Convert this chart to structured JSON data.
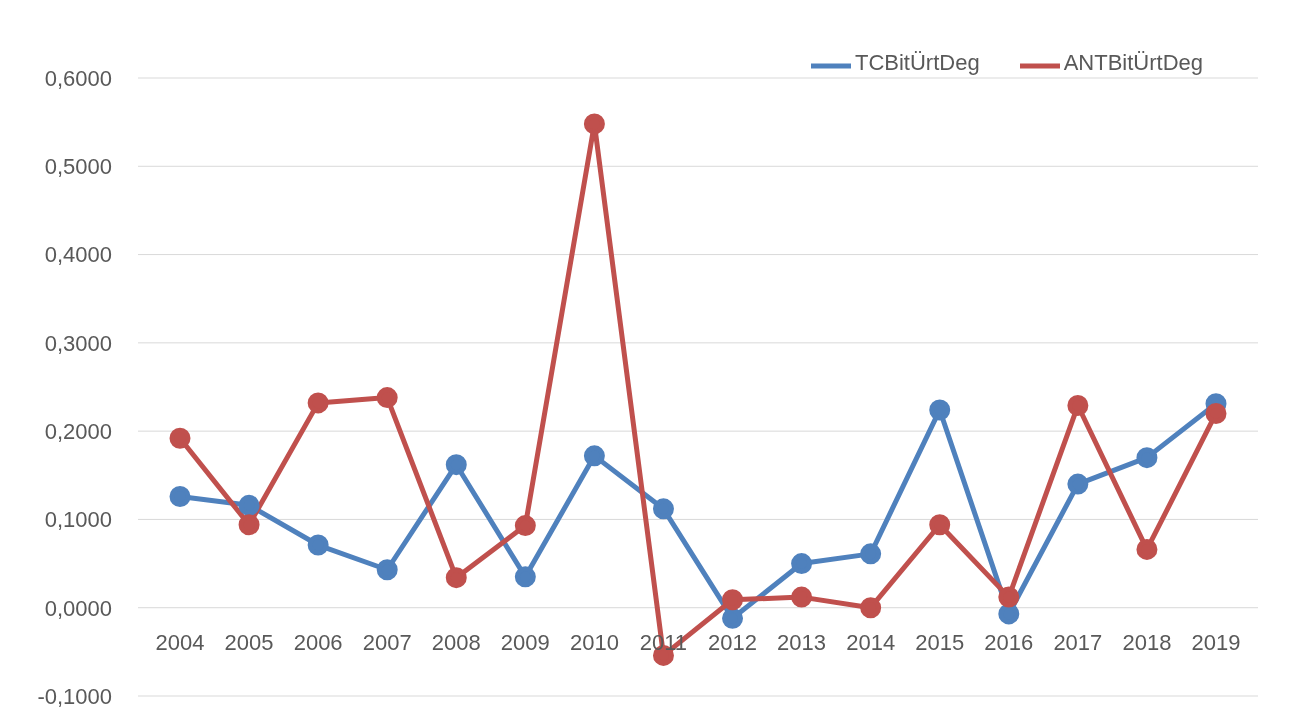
{
  "chart_data": {
    "type": "line",
    "categories": [
      "2004",
      "2005",
      "2006",
      "2007",
      "2008",
      "2009",
      "2010",
      "2011",
      "2012",
      "2013",
      "2014",
      "2015",
      "2016",
      "2017",
      "2018",
      "2019"
    ],
    "series": [
      {
        "name": "TCBitÜrtDeg",
        "color": "#4f81bd",
        "values": [
          0.126,
          0.116,
          0.071,
          0.043,
          0.162,
          0.035,
          0.172,
          0.112,
          -0.012,
          0.05,
          0.061,
          0.224,
          -0.007,
          0.14,
          0.17,
          0.231
        ]
      },
      {
        "name": "ANTBitÜrtDeg",
        "color": "#c0504d",
        "values": [
          0.192,
          0.094,
          0.232,
          0.238,
          0.034,
          0.093,
          0.548,
          -0.054,
          0.009,
          0.012,
          0.0,
          0.094,
          0.012,
          0.229,
          0.066,
          0.22
        ]
      }
    ],
    "ylim": [
      -0.1,
      0.6
    ],
    "yticks": [
      {
        "value": -0.1,
        "label": "-0,1000"
      },
      {
        "value": 0,
        "label": "0,0000"
      },
      {
        "value": 0.1,
        "label": "0,1000"
      },
      {
        "value": 0.2,
        "label": "0,2000"
      },
      {
        "value": 0.3,
        "label": "0,3000"
      },
      {
        "value": 0.4,
        "label": "0,4000"
      },
      {
        "value": 0.5,
        "label": "0,5000"
      },
      {
        "value": 0.6,
        "label": "0,6000"
      }
    ],
    "grid": "y",
    "legend": "top right",
    "marker": "circle",
    "line_style": "solid"
  }
}
